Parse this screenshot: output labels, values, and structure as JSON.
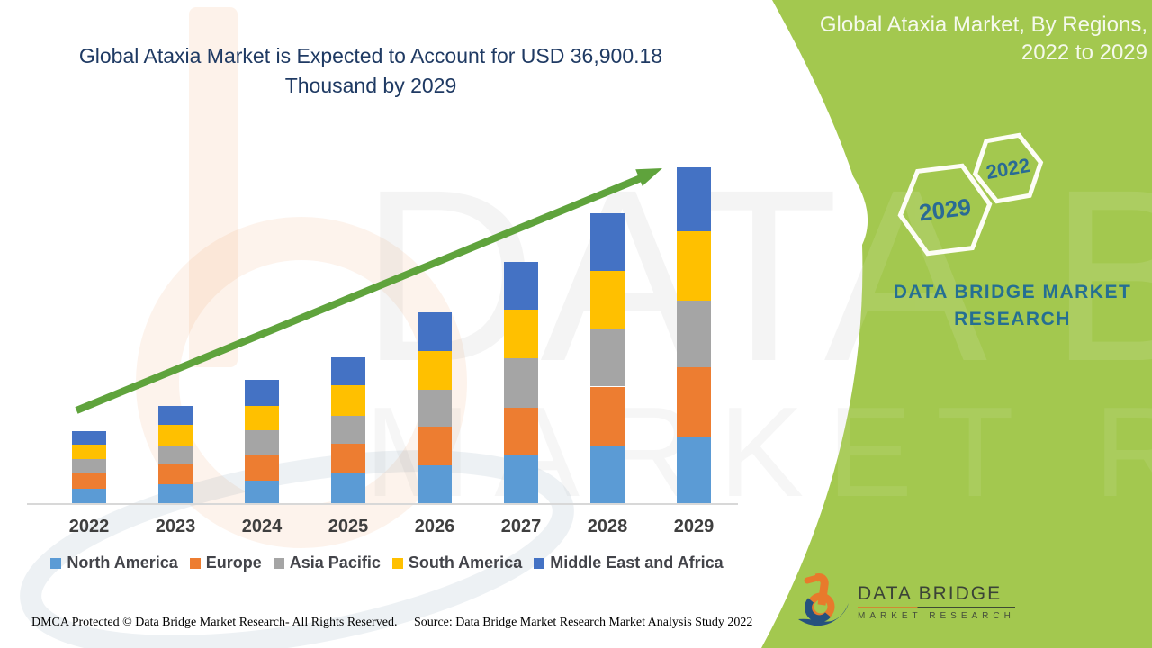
{
  "title": {
    "line1": "Global Ataxia Market is Expected to Account for USD 36,900.18",
    "line2": "Thousand by 2029",
    "color": "#1f3a63"
  },
  "side_panel": {
    "heading_line1": "Global Ataxia Market, By Regions,",
    "heading_line2": "2022 to 2029",
    "hexagons": [
      {
        "label": "2029"
      },
      {
        "label": "2022"
      }
    ],
    "brand_line1": "DATA BRIDGE MARKET",
    "brand_line2": "RESEARCH",
    "colors": {
      "panel_green": "#a3c84f",
      "text_teal": "#256f92",
      "hex_text": "#2a6b94"
    }
  },
  "watermark": {
    "line1": "DATA BRIDGE",
    "line2": "MARKET RESEARCH"
  },
  "footer": {
    "dmca": "DMCA Protected © Data Bridge Market Research- All Rights Reserved.",
    "source": "Source: Data Bridge Market Research Market Analysis Study 2022"
  },
  "logo": {
    "line1": "DATA BRIDGE",
    "line2": "MARKET RESEARCH"
  },
  "chart_data": {
    "type": "bar",
    "stacked": true,
    "title": "Global Ataxia Market is Expected to Account for USD 36,900.18 Thousand by 2029",
    "unit": "USD Thousand",
    "xlabel": "",
    "ylabel": "",
    "ylim": [
      0,
      40000
    ],
    "grid": false,
    "legend_position": "bottom",
    "trendline": true,
    "trendline_color": "#5fa33c",
    "categories": [
      "2022",
      "2023",
      "2024",
      "2025",
      "2026",
      "2027",
      "2028",
      "2029"
    ],
    "series": [
      {
        "name": "North America",
        "color": "#5B9BD5",
        "values": [
          1590,
          2090,
          2520,
          3350,
          4110,
          5200,
          6340,
          7360
        ]
      },
      {
        "name": "Europe",
        "color": "#ED7D31",
        "values": [
          1720,
          2220,
          2720,
          3150,
          4310,
          5300,
          6470,
          7560
        ]
      },
      {
        "name": "Asia Pacific",
        "color": "#A5A5A5",
        "values": [
          1520,
          1990,
          2730,
          3110,
          4080,
          5470,
          6370,
          7360
        ]
      },
      {
        "name": "South America",
        "color": "#FFC000",
        "values": [
          1560,
          2320,
          2750,
          3310,
          4180,
          5340,
          6300,
          7560
        ]
      },
      {
        "name": "Middle East and Africa",
        "color": "#4472C4",
        "values": [
          1560,
          2090,
          2790,
          3150,
          4280,
          5200,
          6370,
          7060
        ]
      }
    ],
    "totals": [
      7950,
      10710,
      13510,
      16070,
      20960,
      26510,
      31850,
      36900
    ]
  }
}
